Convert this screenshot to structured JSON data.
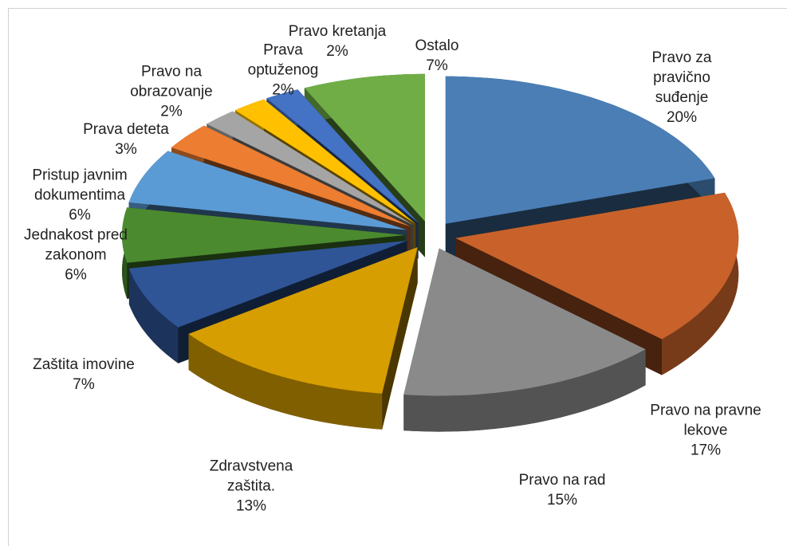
{
  "chart_data": {
    "type": "pie",
    "categories": [
      "Pravo za pravično suđenje",
      "Pravo na pravne lekove",
      "Pravo na rad",
      "Zdravstvena zaštita.",
      "Zaštita imovine",
      "Jednakost pred zakonom",
      "Pristup javnim dokumentima",
      "Prava deteta",
      "Pravo na obrazovanje",
      "Prava optuženog",
      "Pravo kretanja",
      "Ostalo"
    ],
    "values": [
      20,
      17,
      15,
      13,
      7,
      6,
      6,
      3,
      2,
      2,
      2,
      7
    ],
    "value_labels": [
      "20%",
      "17%",
      "15%",
      "13%",
      "7%",
      "6%",
      "6%",
      "3%",
      "2%",
      "2%",
      "2%",
      "7%"
    ],
    "colors": [
      "#4a7eb5",
      "#c8622a",
      "#8a8a8a",
      "#d69e00",
      "#2f5597",
      "#4b8a2f",
      "#5b9bd5",
      "#ed7d31",
      "#a5a5a5",
      "#ffc000",
      "#4472c4",
      "#70ad47"
    ]
  }
}
